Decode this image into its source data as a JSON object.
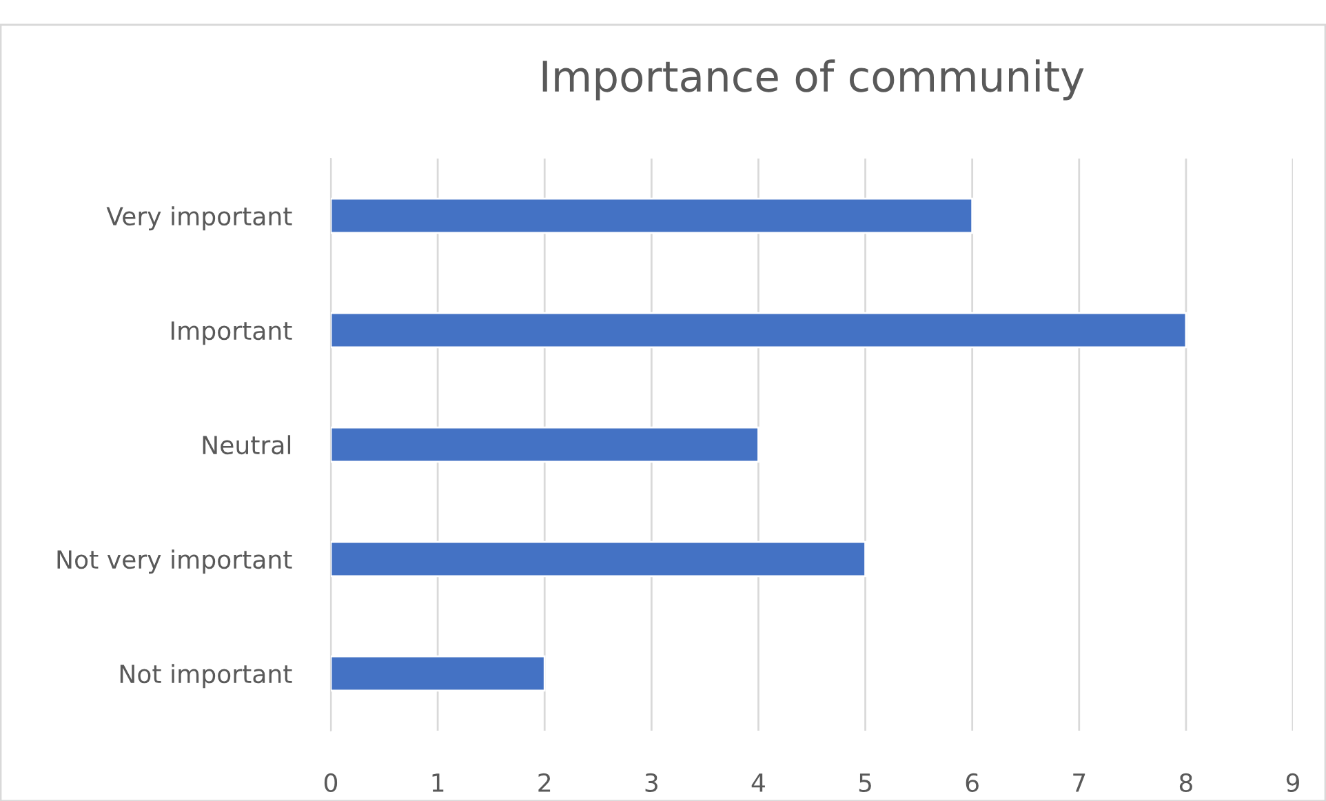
{
  "chart_data": {
    "type": "bar",
    "orientation": "horizontal",
    "title": "Importance of community",
    "categories": [
      "Very important",
      "Important",
      "Neutral",
      "Not very important",
      "Not important"
    ],
    "values": [
      6,
      8,
      4,
      5,
      2
    ],
    "color": "#4472c4",
    "xlim": [
      0,
      9
    ],
    "xticks": [
      0,
      1,
      2,
      3,
      4,
      5,
      6,
      7,
      8,
      9
    ],
    "grid": "x"
  }
}
